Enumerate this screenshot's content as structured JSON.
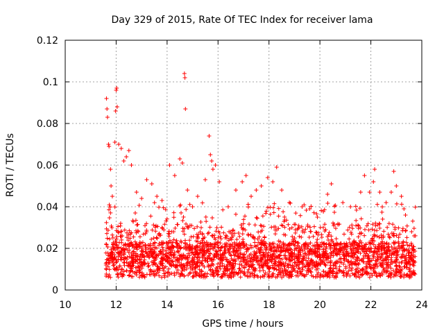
{
  "chart_data": {
    "type": "scatter",
    "title": "Day 329 of 2015, Rate Of TEC Index for receiver lama",
    "xlabel": "GPS time / hours",
    "ylabel": "ROTI / TECUs",
    "xlim": [
      10,
      24
    ],
    "ylim": [
      0,
      0.12
    ],
    "x_ticks": [
      10,
      12,
      14,
      16,
      18,
      20,
      22,
      24
    ],
    "x_tick_labels": [
      "10",
      "12",
      "14",
      "16",
      "18",
      "20",
      "22",
      "24"
    ],
    "y_ticks": [
      0,
      0.02,
      0.04,
      0.06,
      0.08,
      0.1,
      0.12
    ],
    "y_tick_labels": [
      "0",
      "0.02",
      "0.04",
      "0.06",
      "0.08",
      "0.1",
      "0.12"
    ],
    "grid": true,
    "marker": "+",
    "series": [
      {
        "name": "ROTI",
        "color": "#ff0000",
        "x_range": [
          11.6,
          23.75
        ],
        "points": [
          [
            11.62,
            0.092
          ],
          [
            11.64,
            0.087
          ],
          [
            11.66,
            0.083
          ],
          [
            11.7,
            0.07
          ],
          [
            11.72,
            0.069
          ],
          [
            11.78,
            0.058
          ],
          [
            11.8,
            0.05
          ],
          [
            11.85,
            0.045
          ],
          [
            11.95,
            0.071
          ],
          [
            11.98,
            0.086
          ],
          [
            12.0,
            0.096
          ],
          [
            12.02,
            0.097
          ],
          [
            12.04,
            0.088
          ],
          [
            12.1,
            0.07
          ],
          [
            12.2,
            0.068
          ],
          [
            12.3,
            0.062
          ],
          [
            12.4,
            0.064
          ],
          [
            12.5,
            0.067
          ],
          [
            12.6,
            0.06
          ],
          [
            12.8,
            0.047
          ],
          [
            13.0,
            0.044
          ],
          [
            13.2,
            0.053
          ],
          [
            13.4,
            0.051
          ],
          [
            13.6,
            0.045
          ],
          [
            13.8,
            0.043
          ],
          [
            14.1,
            0.06
          ],
          [
            14.3,
            0.055
          ],
          [
            14.5,
            0.063
          ],
          [
            14.6,
            0.061
          ],
          [
            14.68,
            0.104
          ],
          [
            14.7,
            0.102
          ],
          [
            14.72,
            0.087
          ],
          [
            14.8,
            0.048
          ],
          [
            15.0,
            0.04
          ],
          [
            15.2,
            0.045
          ],
          [
            15.5,
            0.053
          ],
          [
            15.65,
            0.074
          ],
          [
            15.7,
            0.065
          ],
          [
            15.75,
            0.062
          ],
          [
            15.8,
            0.058
          ],
          [
            15.9,
            0.06
          ],
          [
            16.05,
            0.052
          ],
          [
            16.4,
            0.04
          ],
          [
            16.7,
            0.048
          ],
          [
            16.95,
            0.052
          ],
          [
            17.1,
            0.055
          ],
          [
            17.3,
            0.045
          ],
          [
            17.5,
            0.048
          ],
          [
            17.7,
            0.05
          ],
          [
            17.95,
            0.054
          ],
          [
            18.15,
            0.052
          ],
          [
            18.3,
            0.059
          ],
          [
            18.5,
            0.048
          ],
          [
            18.8,
            0.042
          ],
          [
            19.3,
            0.04
          ],
          [
            19.6,
            0.039
          ],
          [
            19.9,
            0.035
          ],
          [
            20.3,
            0.046
          ],
          [
            20.45,
            0.051
          ],
          [
            20.9,
            0.042
          ],
          [
            21.2,
            0.04
          ],
          [
            21.6,
            0.047
          ],
          [
            21.75,
            0.055
          ],
          [
            21.95,
            0.047
          ],
          [
            22.1,
            0.052
          ],
          [
            22.15,
            0.058
          ],
          [
            22.35,
            0.047
          ],
          [
            22.6,
            0.042
          ],
          [
            22.8,
            0.047
          ],
          [
            22.9,
            0.057
          ],
          [
            23.0,
            0.05
          ],
          [
            23.2,
            0.045
          ],
          [
            23.3,
            0.039
          ],
          [
            23.6,
            0.028
          ],
          [
            23.7,
            0.026
          ]
        ]
      }
    ]
  }
}
